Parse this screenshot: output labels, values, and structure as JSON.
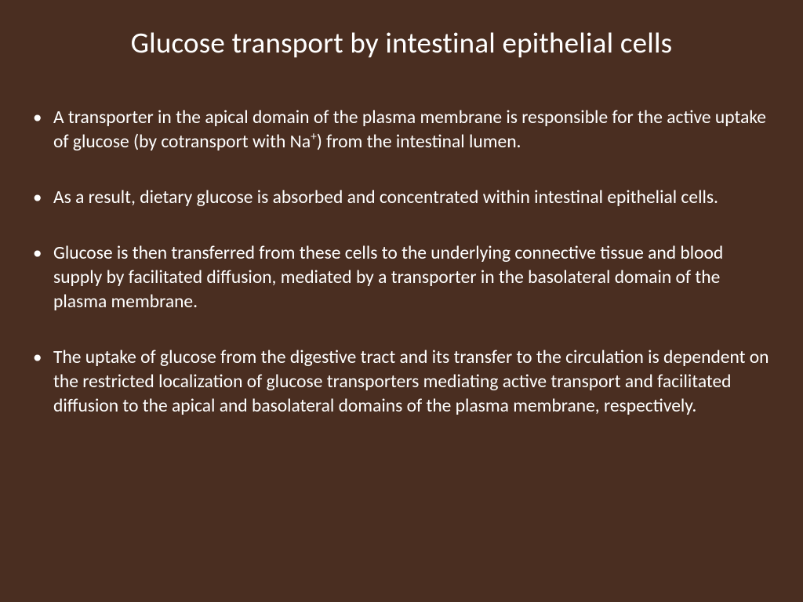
{
  "slide": {
    "background_color": "#4a2e21",
    "text_color": "#ffffff",
    "title": "Glucose transport by intestinal epithelial cells",
    "title_fontsize": 37,
    "body_fontsize": 23.5,
    "bullets": [
      {
        "text_before_sup": "A transporter in the apical domain of the plasma membrane is responsible for the active uptake of glucose (by cotransport with Na",
        "sup": "+",
        "text_after_sup": ") from the intestinal lumen."
      },
      {
        "text_before_sup": "As a result, dietary glucose is absorbed and concentrated within intestinal epithelial cells.",
        "sup": "",
        "text_after_sup": ""
      },
      {
        "text_before_sup": "Glucose is then transferred from these cells to the underlying connective tissue and blood supply by facilitated diffusion, mediated by a transporter in the basolateral domain of the plasma membrane.",
        "sup": "",
        "text_after_sup": ""
      },
      {
        "text_before_sup": "The uptake of glucose from the digestive tract and its transfer to the circulation is dependent on the restricted localization of glucose transporters mediating active transport and facilitated diffusion to the apical and basolateral domains of the plasma membrane, respectively.",
        "sup": "",
        "text_after_sup": ""
      }
    ]
  }
}
